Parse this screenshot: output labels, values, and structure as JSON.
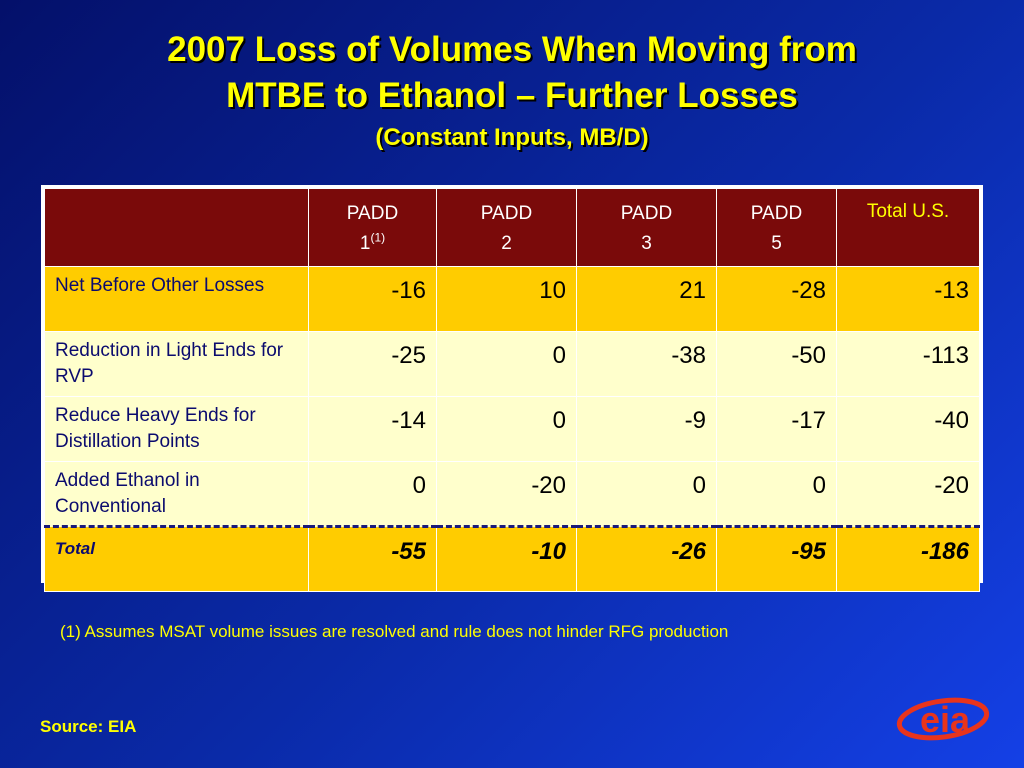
{
  "title": {
    "line1": "2007 Loss of Volumes When Moving from",
    "line2": "MTBE to Ethanol – Further Losses",
    "line3": "(Constant Inputs, MB/D)"
  },
  "table": {
    "headers": [
      {
        "line1": "PADD",
        "line2": "1",
        "sup": "(1)"
      },
      {
        "line1": "PADD",
        "line2": "2"
      },
      {
        "line1": "PADD",
        "line2": "3"
      },
      {
        "line1": "PADD",
        "line2": "5"
      },
      {
        "line1": "Total U.S."
      }
    ],
    "rows": [
      {
        "label": "Net Before Other Losses",
        "values": [
          "-16",
          "10",
          "21",
          "-28",
          "-13"
        ]
      },
      {
        "label": "Reduction in Light Ends for RVP",
        "values": [
          "-25",
          "0",
          "-38",
          "-50",
          "-113"
        ]
      },
      {
        "label": "Reduce Heavy Ends for Distillation Points",
        "values": [
          "-14",
          "0",
          "-9",
          "-17",
          "-40"
        ]
      },
      {
        "label": "Added Ethanol in Conventional",
        "values": [
          "0",
          "-20",
          "0",
          "0",
          "-20"
        ]
      },
      {
        "label": "Total",
        "values": [
          "-55",
          "-10",
          "-26",
          "-95",
          "-186"
        ]
      }
    ]
  },
  "footnote": "(1) Assumes MSAT volume issues are resolved and rule does not  hinder RFG production",
  "source": "Source: EIA",
  "logo": {
    "text": "eia",
    "color": "#e8341c"
  },
  "colors": {
    "title": "#ffff00",
    "header_bg": "#7a0a0a",
    "gold_row": "#ffcc00",
    "pale_row": "#ffffcc",
    "background": "#0a2aa8"
  }
}
